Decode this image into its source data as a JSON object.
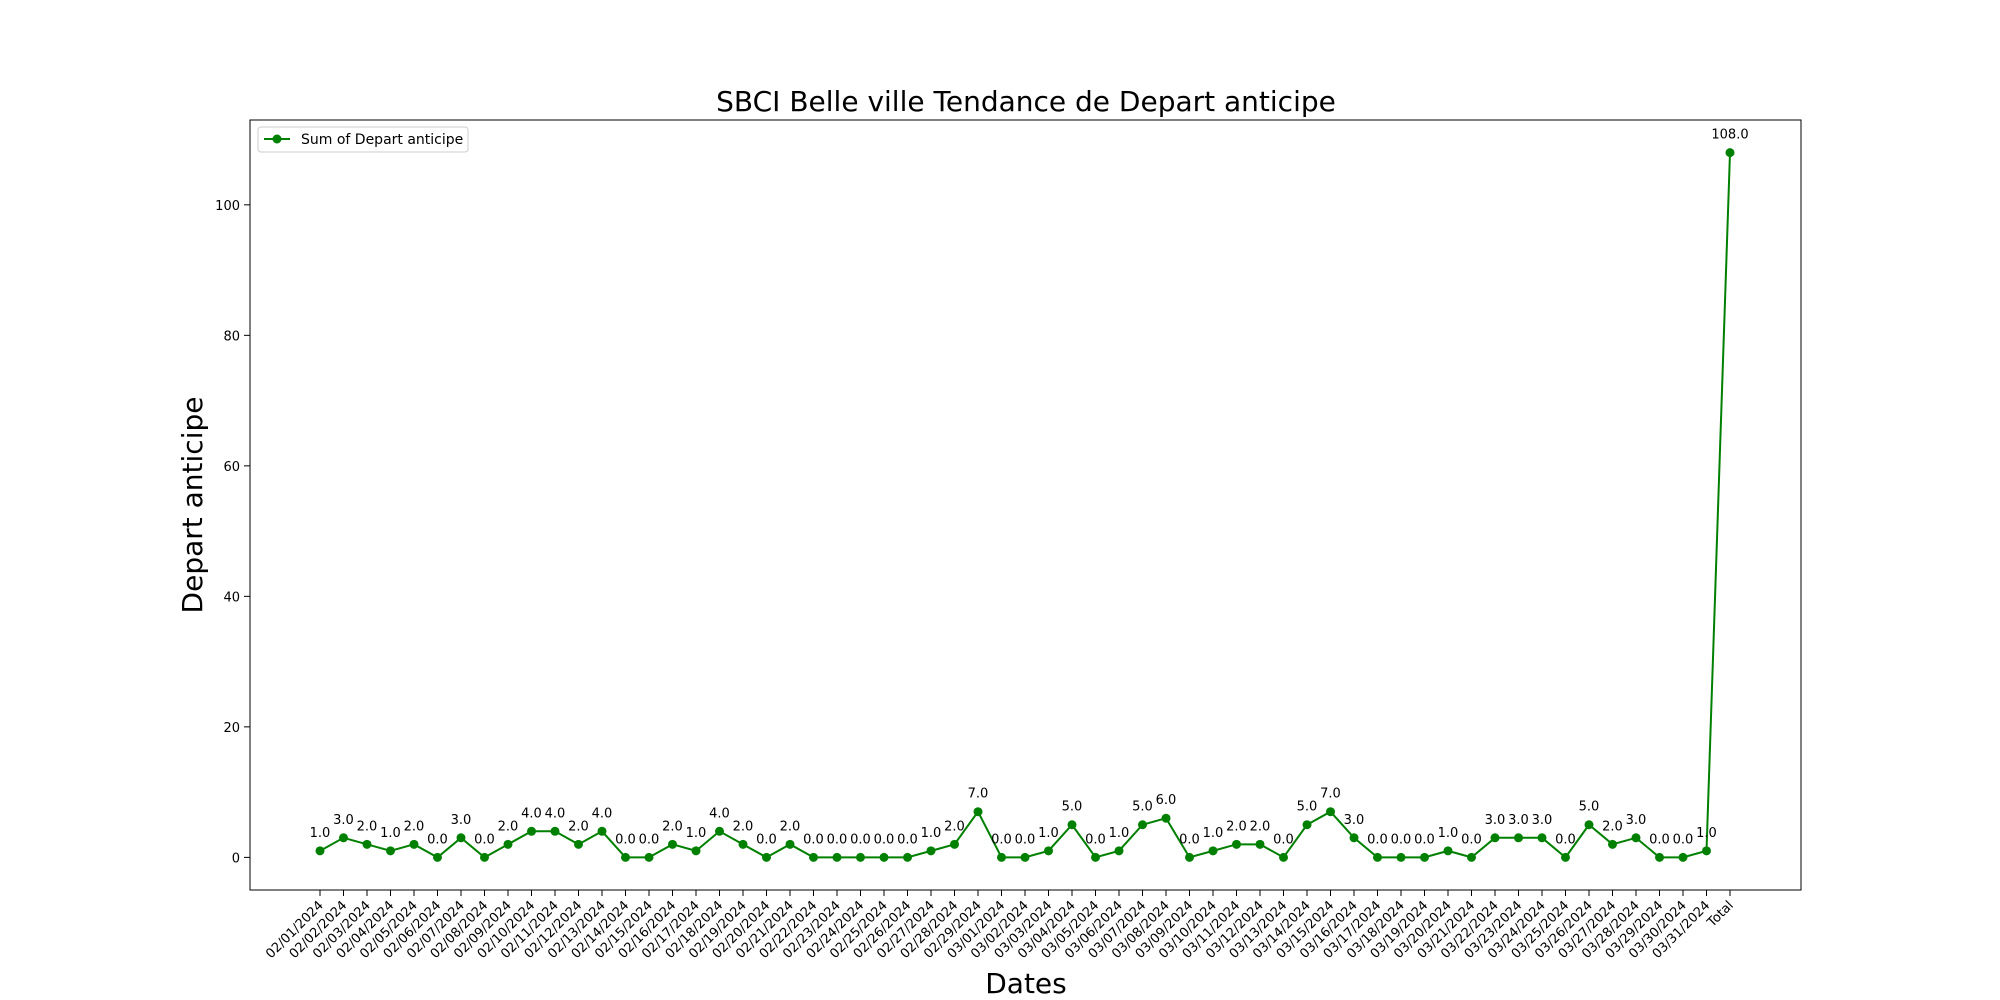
{
  "chart_data": {
    "type": "line",
    "title": "SBCI Belle ville Tendance de Depart anticipe",
    "xlabel": "Dates",
    "ylabel": "Depart anticipe",
    "ylim": [
      -5,
      113
    ],
    "yticks": [
      0,
      20,
      40,
      60,
      80,
      100
    ],
    "grid": false,
    "legend_position": "top-left",
    "series_color": "#008000",
    "categories": [
      "02/01/2024",
      "02/02/2024",
      "02/03/2024",
      "02/04/2024",
      "02/05/2024",
      "02/06/2024",
      "02/07/2024",
      "02/08/2024",
      "02/09/2024",
      "02/10/2024",
      "02/11/2024",
      "02/12/2024",
      "02/13/2024",
      "02/14/2024",
      "02/15/2024",
      "02/16/2024",
      "02/17/2024",
      "02/18/2024",
      "02/19/2024",
      "02/20/2024",
      "02/21/2024",
      "02/22/2024",
      "02/23/2024",
      "02/24/2024",
      "02/25/2024",
      "02/26/2024",
      "02/27/2024",
      "02/28/2024",
      "02/29/2024",
      "03/01/2024",
      "03/02/2024",
      "03/03/2024",
      "03/04/2024",
      "03/05/2024",
      "03/06/2024",
      "03/07/2024",
      "03/08/2024",
      "03/09/2024",
      "03/10/2024",
      "03/11/2024",
      "03/12/2024",
      "03/13/2024",
      "03/14/2024",
      "03/15/2024",
      "03/16/2024",
      "03/17/2024",
      "03/18/2024",
      "03/19/2024",
      "03/20/2024",
      "03/21/2024",
      "03/22/2024",
      "03/23/2024",
      "03/24/2024",
      "03/25/2024",
      "03/26/2024",
      "03/27/2024",
      "03/28/2024",
      "03/29/2024",
      "03/30/2024",
      "03/31/2024",
      "Total"
    ],
    "series": [
      {
        "name": "Sum of Depart anticipe",
        "values": [
          1,
          3,
          2,
          1,
          2,
          0,
          3,
          0,
          2,
          4,
          4,
          2,
          4,
          0,
          0,
          2,
          1,
          4,
          2,
          0,
          2,
          0,
          0,
          0,
          0,
          0,
          1,
          2,
          7,
          0,
          0,
          1,
          5,
          0,
          1,
          5,
          6,
          0,
          1,
          2,
          2,
          0,
          5,
          7,
          3,
          0,
          0,
          0,
          1,
          0,
          3,
          3,
          3,
          0,
          5,
          2,
          3,
          0,
          0,
          1,
          108
        ]
      }
    ]
  }
}
